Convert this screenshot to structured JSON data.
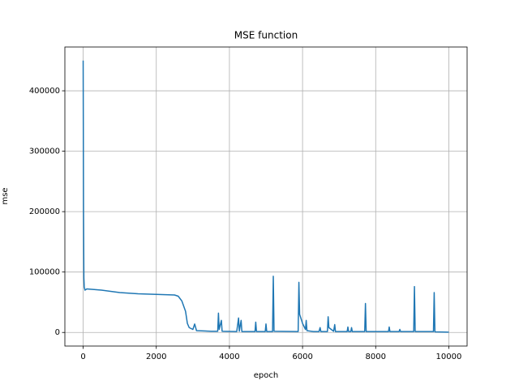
{
  "chart_data": {
    "type": "line",
    "title": "MSE function",
    "x_label": "epoch",
    "y_label": "mse",
    "xlim": [
      -500,
      10500
    ],
    "ylim": [
      -22500,
      472500
    ],
    "xticks": [
      0,
      2000,
      4000,
      6000,
      8000,
      10000
    ],
    "yticks": [
      0,
      100000,
      200000,
      300000,
      400000
    ],
    "grid": true,
    "series": [
      {
        "name": "mse",
        "color": "#1f77b4",
        "x": [
          0,
          10,
          20,
          30,
          50,
          100,
          500,
          1000,
          1500,
          2000,
          2500,
          2600,
          2700,
          2800,
          2850,
          2900,
          3000,
          3050,
          3100,
          3500,
          3680,
          3700,
          3720,
          3780,
          3800,
          4200,
          4250,
          4270,
          4320,
          4340,
          4700,
          4720,
          4740,
          4980,
          5000,
          5020,
          5180,
          5200,
          5220,
          5880,
          5900,
          5920,
          6000,
          6080,
          6100,
          6120,
          6300,
          6450,
          6480,
          6500,
          6680,
          6700,
          6720,
          6850,
          6880,
          6900,
          7220,
          7240,
          7260,
          7320,
          7340,
          7360,
          7700,
          7720,
          7740,
          8350,
          8370,
          8390,
          8640,
          8660,
          8680,
          9040,
          9060,
          9080,
          9580,
          9600,
          9620,
          10000
        ],
        "values": [
          450000,
          200000,
          90000,
          75000,
          70000,
          72000,
          70000,
          66000,
          64000,
          63000,
          62000,
          60000,
          52000,
          35000,
          15000,
          8000,
          5000,
          14000,
          3000,
          2000,
          2000,
          32000,
          5000,
          20000,
          2000,
          1500,
          24000,
          2000,
          20000,
          1500,
          1500,
          17000,
          1500,
          1500,
          14000,
          1500,
          1500,
          93000,
          2000,
          1500,
          83000,
          30000,
          15000,
          5000,
          20000,
          3000,
          1500,
          1500,
          8000,
          1500,
          1500,
          26000,
          8000,
          2000,
          13000,
          1500,
          1500,
          9000,
          1500,
          1500,
          8000,
          1500,
          1500,
          48000,
          1500,
          1500,
          9000,
          1500,
          1500,
          5000,
          1500,
          1500,
          76000,
          1500,
          1500,
          66000,
          1000,
          500
        ]
      }
    ]
  }
}
